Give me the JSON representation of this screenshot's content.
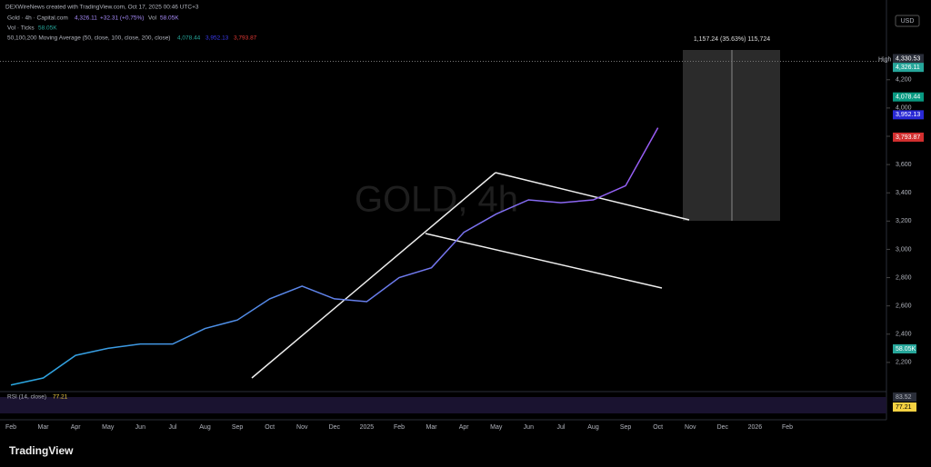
{
  "header": {
    "credit": "DEXWireNews created with TradingView.com, Oct 17, 2025 00:46 UTC+3",
    "currency": "USD",
    "logo": "TradingView"
  },
  "legend": {
    "symbol": "Gold · 4h · Capital.com",
    "price": "4,326.11",
    "change": "+32.31 (+0.75%)",
    "vol_title": "Vol",
    "vol": "58.05K",
    "vol_ticks": "Vol · Ticks",
    "vol_ticks_value": "58.05K",
    "ma_title": "50,100,200 Moving Average (50, close, 100, close, 200, close)",
    "ma_values": [
      "4,078.44",
      "3,952.13",
      "3,793.87"
    ],
    "rsi_title": "RSI (14, close)",
    "rsi_value": "77.21"
  },
  "measure": "1,157.24 (35.63%) 115,724",
  "side_labels": {
    "volume": "58.05K",
    "rsi_upper": "83.52",
    "rsi_value": "77.21"
  },
  "chart_data": {
    "type": "line",
    "watermark": "GOLD, 4h",
    "categories": [
      "Feb",
      "Mar",
      "Apr",
      "May",
      "Jun",
      "Jul",
      "Aug",
      "Sep",
      "Oct",
      "Nov",
      "Dec",
      "2025",
      "Feb",
      "Mar",
      "Apr",
      "May",
      "Jun",
      "Jul",
      "Aug",
      "Sep",
      "Oct",
      "Nov",
      "Dec",
      "2026",
      "Feb"
    ],
    "series": [
      {
        "name": "Gold",
        "colors": [
          "#29a8e0",
          "#9b5cf6"
        ],
        "values": [
          2040,
          2090,
          2250,
          2300,
          2330,
          2330,
          2440,
          2500,
          2650,
          2740,
          2650,
          2630,
          2800,
          2870,
          3120,
          3250,
          3350,
          3330,
          3350,
          3450,
          3860,
          null,
          null,
          null,
          null
        ]
      }
    ],
    "ylim": [
      2000,
      4700
    ],
    "yticks": [
      {
        "value": 2200,
        "label": "2,200"
      },
      {
        "value": 2400,
        "label": "2,400"
      },
      {
        "value": 2600,
        "label": "2,600"
      },
      {
        "value": 2800,
        "label": "2,800"
      },
      {
        "value": 3000,
        "label": "3,000"
      },
      {
        "value": 3200,
        "label": "3,200"
      },
      {
        "value": 3400,
        "label": "3,400"
      },
      {
        "value": 3600,
        "label": "3,600"
      },
      {
        "value": 3800,
        "label": "3,800"
      },
      {
        "value": 4000,
        "label": "4,000"
      },
      {
        "value": 4200,
        "label": "4,200"
      }
    ],
    "high_label": "High",
    "price_tags": [
      {
        "value": 4330.53,
        "label": "4,330.53",
        "color": "#2a2e39"
      },
      {
        "value": 4326.11,
        "label": "4,326.11",
        "color": "#26a69a"
      },
      {
        "value": 4078.44,
        "label": "4,078.44",
        "color": "#089981"
      },
      {
        "value": 3952.13,
        "label": "3,952.13",
        "color": "#2929d6"
      },
      {
        "value": 3793.87,
        "label": "3,793.87",
        "color": "#d32f2f"
      }
    ]
  }
}
